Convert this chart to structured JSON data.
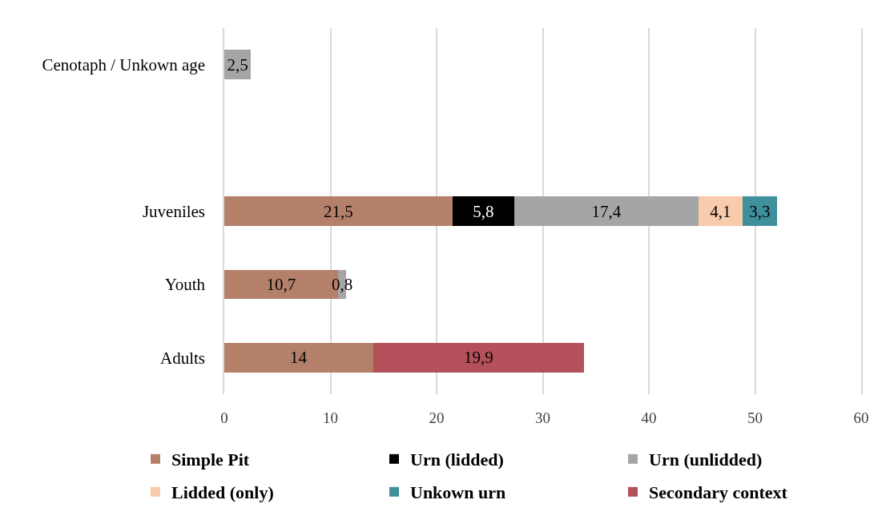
{
  "chart_data": {
    "type": "bar",
    "orientation": "horizontal",
    "stacked": true,
    "categories": [
      "Cenotaph / Unkown age",
      null,
      "Juveniles",
      "Youth",
      "Adults"
    ],
    "series": [
      {
        "name": "Simple Pit",
        "color": "#b4806a",
        "values": [
          null,
          null,
          21.5,
          10.7,
          14
        ],
        "value_labels": [
          null,
          null,
          "21,5",
          "10,7",
          "14"
        ]
      },
      {
        "name": "Urn (lidded)",
        "color": "#000000",
        "values": [
          null,
          null,
          5.8,
          null,
          null
        ],
        "value_labels": [
          null,
          null,
          "5,8",
          null,
          null
        ]
      },
      {
        "name": "Urn (unlidded)",
        "color": "#a5a5a5",
        "values": [
          2.5,
          null,
          17.4,
          0.8,
          null
        ],
        "value_labels": [
          "2,5",
          null,
          "17,4",
          "0,8",
          null
        ]
      },
      {
        "name": "Lidded (only)",
        "color": "#f8cbad",
        "values": [
          null,
          null,
          4.1,
          null,
          null
        ],
        "value_labels": [
          null,
          null,
          "4,1",
          null,
          null
        ]
      },
      {
        "name": "Unkown urn",
        "color": "#3f8f9c",
        "values": [
          null,
          null,
          3.3,
          null,
          null
        ],
        "value_labels": [
          null,
          null,
          "3,3",
          null,
          null
        ]
      },
      {
        "name": "Secondary context",
        "color": "#b45059",
        "values": [
          null,
          null,
          null,
          null,
          19.9
        ],
        "value_labels": [
          null,
          null,
          null,
          null,
          "19,9"
        ]
      }
    ],
    "xlim": [
      0,
      60
    ],
    "xticks": [
      0,
      10,
      20,
      30,
      40,
      50,
      60
    ],
    "grid": "x",
    "legend": "bottom"
  }
}
